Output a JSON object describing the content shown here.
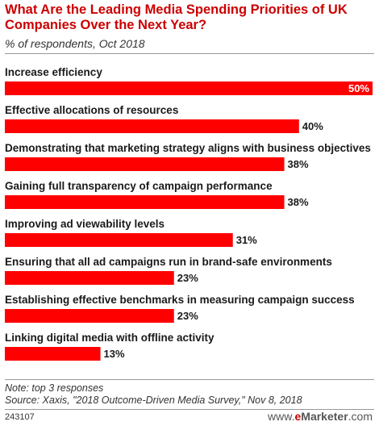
{
  "chart_data": {
    "type": "bar",
    "orientation": "horizontal",
    "title": "What Are the Leading Media Spending Priorities of UK Companies Over the Next Year?",
    "subtitle": "% of respondents, Oct 2018",
    "categories": [
      "Increase efficiency",
      "Effective allocations of resources",
      "Demonstrating that marketing strategy aligns with business objectives",
      "Gaining full transparency of campaign performance",
      "Improving ad viewability levels",
      "Ensuring that all ad campaigns run in brand-safe environments",
      "Establishing effective benchmarks in measuring campaign success",
      "Linking digital media with offline activity"
    ],
    "values": [
      50,
      40,
      38,
      38,
      31,
      23,
      23,
      13
    ],
    "value_labels": [
      "50%",
      "40%",
      "38%",
      "38%",
      "31%",
      "23%",
      "23%",
      "13%"
    ],
    "xlim": [
      0,
      50
    ],
    "bar_color": "#ff0000",
    "grid": false
  },
  "notes": {
    "note": "Note: top 3 responses",
    "source": "Source: Xaxis, \"2018 Outcome-Driven Media Survey,\" Nov 8, 2018"
  },
  "footer": {
    "chart_id": "243107",
    "brand_prefix": "www.",
    "brand_e": "e",
    "brand_rest": "Marketer",
    "brand_suffix": ".com"
  },
  "colors": {
    "title": "#cc0000",
    "bar": "#ff0000",
    "brand_accent": "#cc0000"
  }
}
